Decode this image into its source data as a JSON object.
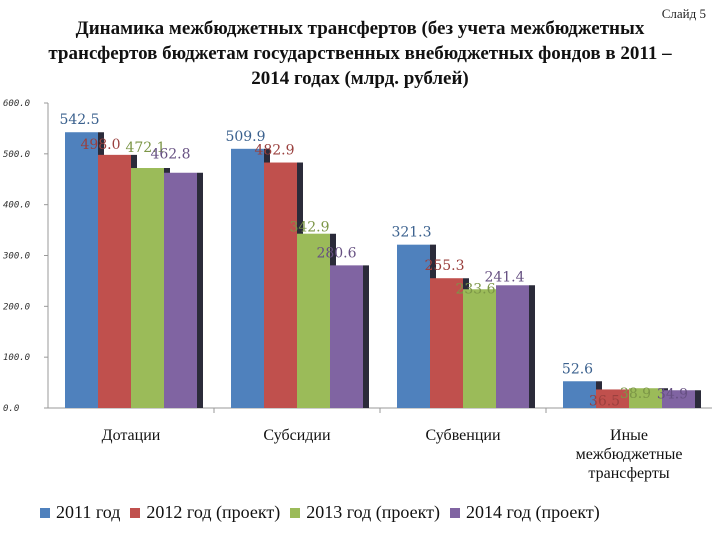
{
  "slide_label": "Слайд 5",
  "chart_data": {
    "type": "bar",
    "title": "Динамика межбюджетных трансфертов (без учета межбюджетных трансфертов бюджетам государственных внебюджетных фондов в 2011 – 2014 годах (млрд. рублей)",
    "xlabel": "",
    "ylabel": "",
    "ylim": [
      0,
      600
    ],
    "yticks": [
      "0.0",
      "100.0",
      "200.0",
      "300.0",
      "400.0",
      "500.0",
      "600.0"
    ],
    "ytick_values": [
      0,
      100,
      200,
      300,
      400,
      500,
      600
    ],
    "grid": false,
    "legend_position": "bottom",
    "categories": [
      "Дотации",
      "Субсидии",
      "Субвенции",
      "Иные межбюджетные трансферты"
    ],
    "series": [
      {
        "name": "2011 год",
        "color": "#4F81BD",
        "values": [
          542.5,
          509.9,
          321.3,
          52.6
        ],
        "labels": [
          "542.5",
          "509.9",
          "321.3",
          "52.6"
        ]
      },
      {
        "name": "2012 год (проект)",
        "color": "#C0504D",
        "values": [
          498.0,
          482.9,
          255.3,
          36.5
        ],
        "labels": [
          "498.0",
          "482.9",
          "255.3",
          "36.5"
        ]
      },
      {
        "name": "2013 год (проект)",
        "color": "#9BBB59",
        "values": [
          472.1,
          342.9,
          233.6,
          38.9
        ],
        "labels": [
          "472.1",
          "342.9",
          "233.6",
          "38.9"
        ]
      },
      {
        "name": "2014 год (проект)",
        "color": "#8064A2",
        "values": [
          462.8,
          280.6,
          241.4,
          34.9
        ],
        "labels": [
          "462.8",
          "280.6",
          "241.4",
          "34.9"
        ]
      }
    ]
  }
}
